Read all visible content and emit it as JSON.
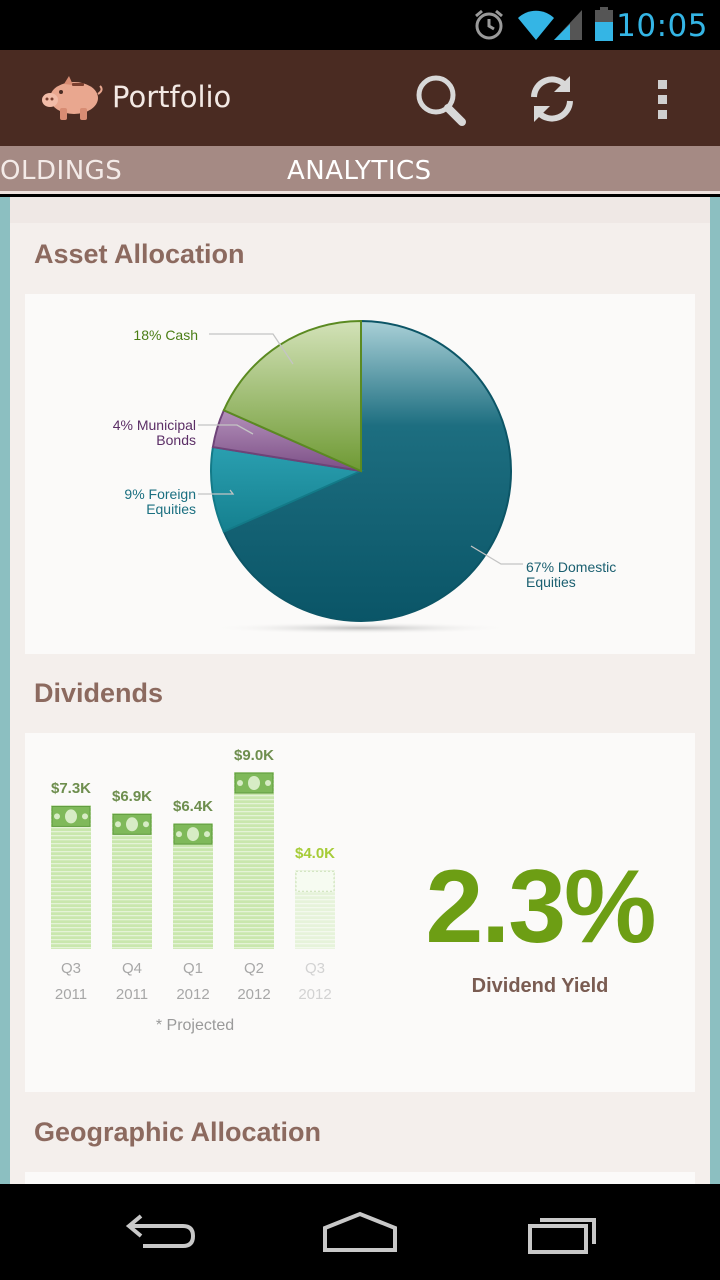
{
  "status_bar": {
    "time": "10:05",
    "icons": [
      "alarm-icon",
      "wifi-icon",
      "cell-signal-icon",
      "battery-icon"
    ]
  },
  "action_bar": {
    "title": "Portfolio",
    "app_icon": "piggy-bank-icon",
    "actions": [
      "search-icon",
      "refresh-icon",
      "overflow-menu-icon"
    ]
  },
  "tabs": {
    "holdings": "HOLDINGS",
    "analytics": "ANALYTICS"
  },
  "asset_allocation": {
    "title": "Asset Allocation",
    "labels": {
      "cash": "18% Cash",
      "municipal_line1": "4% Municipal",
      "municipal_line2": "Bonds",
      "foreign_line1": "9% Foreign",
      "foreign_line2": "Equities",
      "domestic_line1": "67% Domestic",
      "domestic_line2": "Equities"
    }
  },
  "dividends": {
    "title": "Dividends",
    "projected_note": "* Projected",
    "value_labels": [
      "$7.3K",
      "$6.9K",
      "$6.4K",
      "$9.0K",
      "$4.0K"
    ],
    "quarters": [
      "Q3",
      "Q4",
      "Q1",
      "Q2",
      "Q3"
    ],
    "years": [
      "2011",
      "2011",
      "2012",
      "2012",
      "2012"
    ],
    "yield_value": "2.3%",
    "yield_label": "Dividend Yield"
  },
  "geographic_allocation": {
    "title": "Geographic Allocation"
  },
  "colors": {
    "action_bar": "#4a2b22",
    "tab_strip": "#a58a84",
    "section_title": "#8c6a5f",
    "domestic": "#0f5f72",
    "foreign": "#1a8a9b",
    "municipal": "#8a5a92",
    "cash": "#7fa24a",
    "yield": "#6d9e14",
    "time": "#34b5e5"
  },
  "chart_data": [
    {
      "type": "pie",
      "title": "Asset Allocation",
      "categories": [
        "Domestic Equities",
        "Foreign Equities",
        "Municipal Bonds",
        "Cash"
      ],
      "values": [
        67,
        9,
        4,
        18
      ]
    },
    {
      "type": "bar",
      "title": "Dividends",
      "categories": [
        "Q3 2011",
        "Q4 2011",
        "Q1 2012",
        "Q2 2012",
        "Q3 2012"
      ],
      "values": [
        7.3,
        6.9,
        6.4,
        9.0,
        4.0
      ],
      "projected": [
        false,
        false,
        false,
        false,
        true
      ],
      "ylabel": "",
      "ylim": [
        0,
        9.0
      ]
    }
  ],
  "navigation": [
    "back-icon",
    "home-icon",
    "recent-apps-icon"
  ]
}
